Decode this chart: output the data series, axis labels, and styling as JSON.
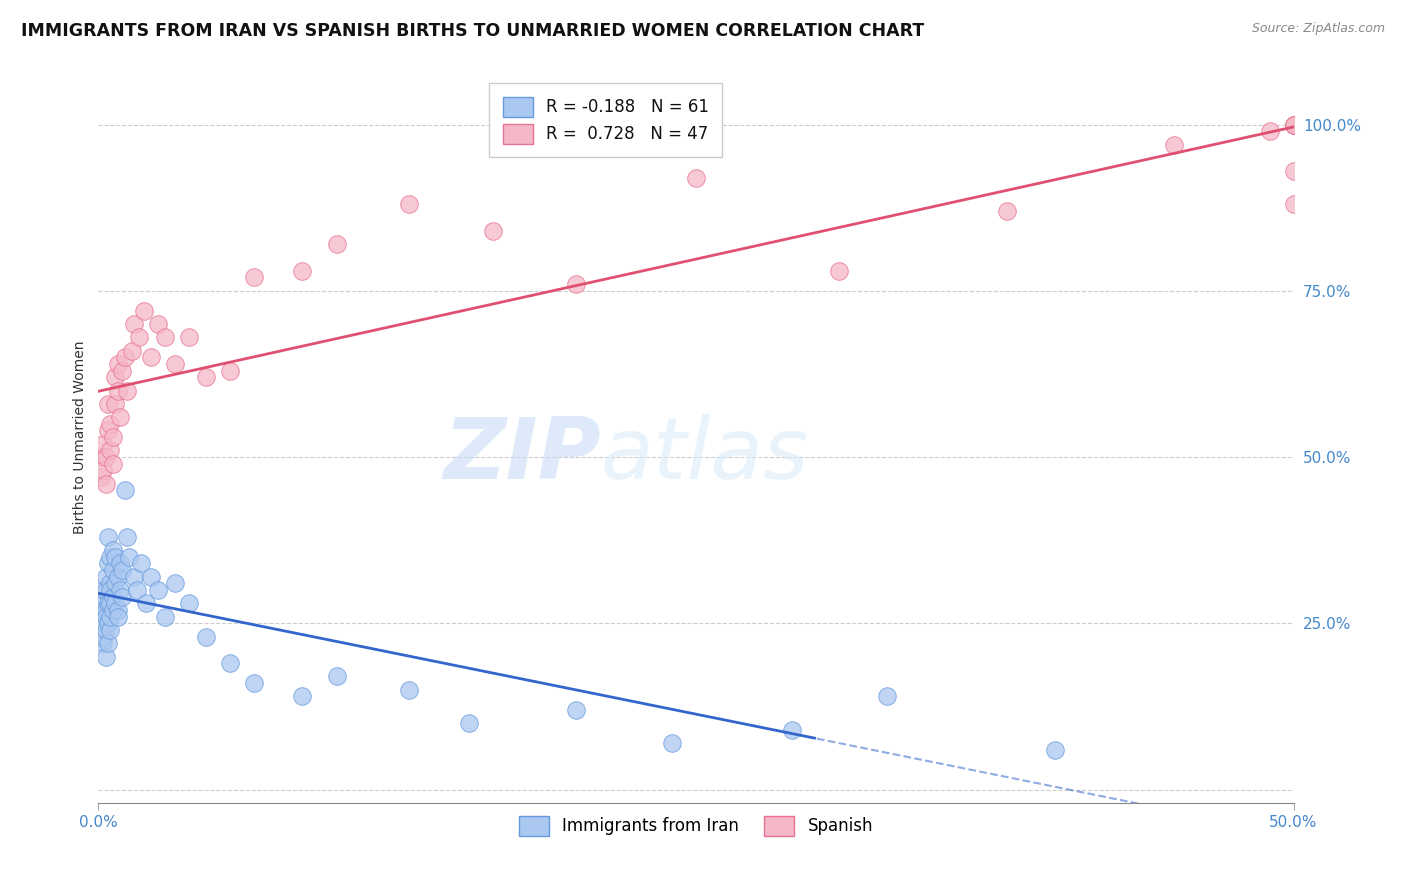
{
  "title": "IMMIGRANTS FROM IRAN VS SPANISH BIRTHS TO UNMARRIED WOMEN CORRELATION CHART",
  "source": "Source: ZipAtlas.com",
  "ylabel_left": "Births to Unmarried Women",
  "xlim": [
    0.0,
    0.5
  ],
  "ylim": [
    -0.02,
    1.08
  ],
  "x_ticks": [
    0.0,
    0.5
  ],
  "x_tick_labels": [
    "0.0%",
    "50.0%"
  ],
  "y_ticks_right": [
    0.25,
    0.5,
    0.75,
    1.0
  ],
  "y_tick_labels_right": [
    "25.0%",
    "50.0%",
    "75.0%",
    "100.0%"
  ],
  "blue_R": -0.188,
  "blue_N": 61,
  "pink_R": 0.728,
  "pink_N": 47,
  "blue_color": "#aac8f0",
  "pink_color": "#f5b8c8",
  "blue_edge_color": "#6699dd",
  "pink_edge_color": "#e87090",
  "blue_line_color": "#3366cc",
  "pink_line_color": "#e05070",
  "legend_label_blue": "Immigrants from Iran",
  "legend_label_pink": "Spanish",
  "watermark_zip": "ZIP",
  "watermark_atlas": "atlas",
  "grid_color": "#cccccc",
  "background_color": "#ffffff",
  "title_fontsize": 12.5,
  "axis_label_fontsize": 10,
  "tick_fontsize": 11,
  "legend_fontsize": 12,
  "blue_scatter_x": [
    0.001,
    0.001,
    0.002,
    0.002,
    0.002,
    0.002,
    0.003,
    0.003,
    0.003,
    0.003,
    0.003,
    0.003,
    0.004,
    0.004,
    0.004,
    0.004,
    0.004,
    0.005,
    0.005,
    0.005,
    0.005,
    0.005,
    0.005,
    0.006,
    0.006,
    0.006,
    0.006,
    0.007,
    0.007,
    0.007,
    0.008,
    0.008,
    0.008,
    0.009,
    0.009,
    0.01,
    0.01,
    0.011,
    0.012,
    0.013,
    0.015,
    0.016,
    0.018,
    0.02,
    0.022,
    0.025,
    0.028,
    0.032,
    0.038,
    0.045,
    0.055,
    0.065,
    0.085,
    0.1,
    0.13,
    0.155,
    0.2,
    0.24,
    0.29,
    0.33,
    0.4
  ],
  "blue_scatter_y": [
    0.25,
    0.28,
    0.22,
    0.27,
    0.3,
    0.23,
    0.2,
    0.24,
    0.27,
    0.3,
    0.26,
    0.32,
    0.22,
    0.25,
    0.28,
    0.34,
    0.38,
    0.24,
    0.26,
    0.28,
    0.31,
    0.35,
    0.3,
    0.27,
    0.29,
    0.33,
    0.36,
    0.28,
    0.31,
    0.35,
    0.27,
    0.32,
    0.26,
    0.3,
    0.34,
    0.29,
    0.33,
    0.45,
    0.38,
    0.35,
    0.32,
    0.3,
    0.34,
    0.28,
    0.32,
    0.3,
    0.26,
    0.31,
    0.28,
    0.23,
    0.19,
    0.16,
    0.14,
    0.17,
    0.15,
    0.1,
    0.12,
    0.07,
    0.09,
    0.14,
    0.06
  ],
  "pink_scatter_x": [
    0.001,
    0.001,
    0.002,
    0.002,
    0.003,
    0.003,
    0.004,
    0.004,
    0.005,
    0.005,
    0.006,
    0.006,
    0.007,
    0.007,
    0.008,
    0.008,
    0.009,
    0.01,
    0.011,
    0.012,
    0.014,
    0.015,
    0.017,
    0.019,
    0.022,
    0.025,
    0.028,
    0.032,
    0.038,
    0.045,
    0.055,
    0.065,
    0.085,
    0.1,
    0.13,
    0.165,
    0.2,
    0.25,
    0.31,
    0.38,
    0.45,
    0.49,
    0.5,
    0.5,
    0.5,
    0.5,
    0.5
  ],
  "pink_scatter_y": [
    0.47,
    0.5,
    0.48,
    0.52,
    0.46,
    0.5,
    0.54,
    0.58,
    0.51,
    0.55,
    0.49,
    0.53,
    0.58,
    0.62,
    0.6,
    0.64,
    0.56,
    0.63,
    0.65,
    0.6,
    0.66,
    0.7,
    0.68,
    0.72,
    0.65,
    0.7,
    0.68,
    0.64,
    0.68,
    0.62,
    0.63,
    0.77,
    0.78,
    0.82,
    0.88,
    0.84,
    0.76,
    0.92,
    0.78,
    0.87,
    0.97,
    0.99,
    1.0,
    0.88,
    0.93,
    1.0,
    1.0
  ]
}
